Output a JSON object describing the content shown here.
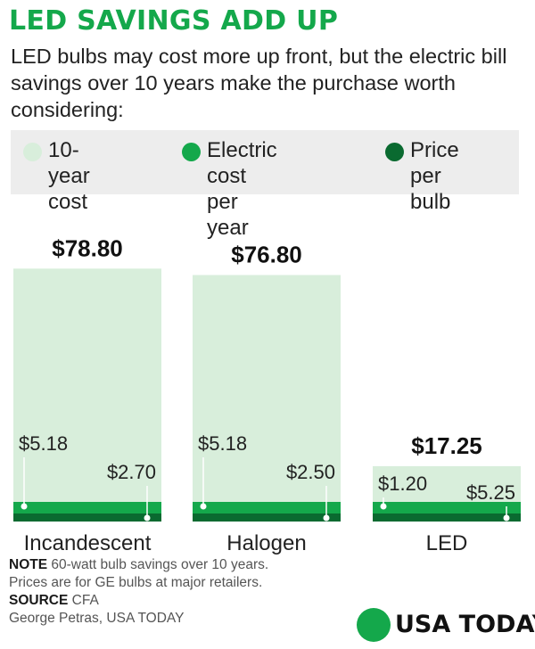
{
  "title": "LED SAVINGS ADD UP",
  "subtitle": "LED bulbs may cost more up front, but the electric bill savings over 10 years make the purchase worth considering:",
  "legend": {
    "items": [
      {
        "line1": "10-year",
        "line2": "cost",
        "color": "#d8eedb"
      },
      {
        "line1": "Electric cost",
        "line2": "per year",
        "color": "#14a84b"
      },
      {
        "line1": "Price",
        "line2": "per bulb",
        "color": "#0a6a30"
      }
    ]
  },
  "chart_data": {
    "type": "bar",
    "categories": [
      "Incandescent",
      "Halogen",
      "LED"
    ],
    "series": [
      {
        "name": "10-year cost",
        "values": [
          78.8,
          76.8,
          17.25
        ],
        "labels": [
          "$78.80",
          "$76.80",
          "$17.25"
        ],
        "color": "#d8eedb"
      },
      {
        "name": "Electric cost per year",
        "values": [
          5.18,
          5.18,
          1.2
        ],
        "labels": [
          "$5.18",
          "$5.18",
          "$1.20"
        ],
        "color": "#14a84b"
      },
      {
        "name": "Price per bulb",
        "values": [
          2.7,
          2.5,
          5.25
        ],
        "labels": [
          "$2.70",
          "$2.50",
          "$5.25"
        ],
        "color": "#0a6a30"
      }
    ]
  },
  "footer": {
    "note_label": "NOTE",
    "note_text": " 60-watt bulb savings over 10 years.",
    "note_text2": "Prices are for GE bulbs at major retailers.",
    "source_label": "SOURCE",
    "source_text": " CFA",
    "credit": "George Petras, USA TODAY"
  },
  "brand": {
    "name": "USA TODAY",
    "color": "#14a84b"
  }
}
